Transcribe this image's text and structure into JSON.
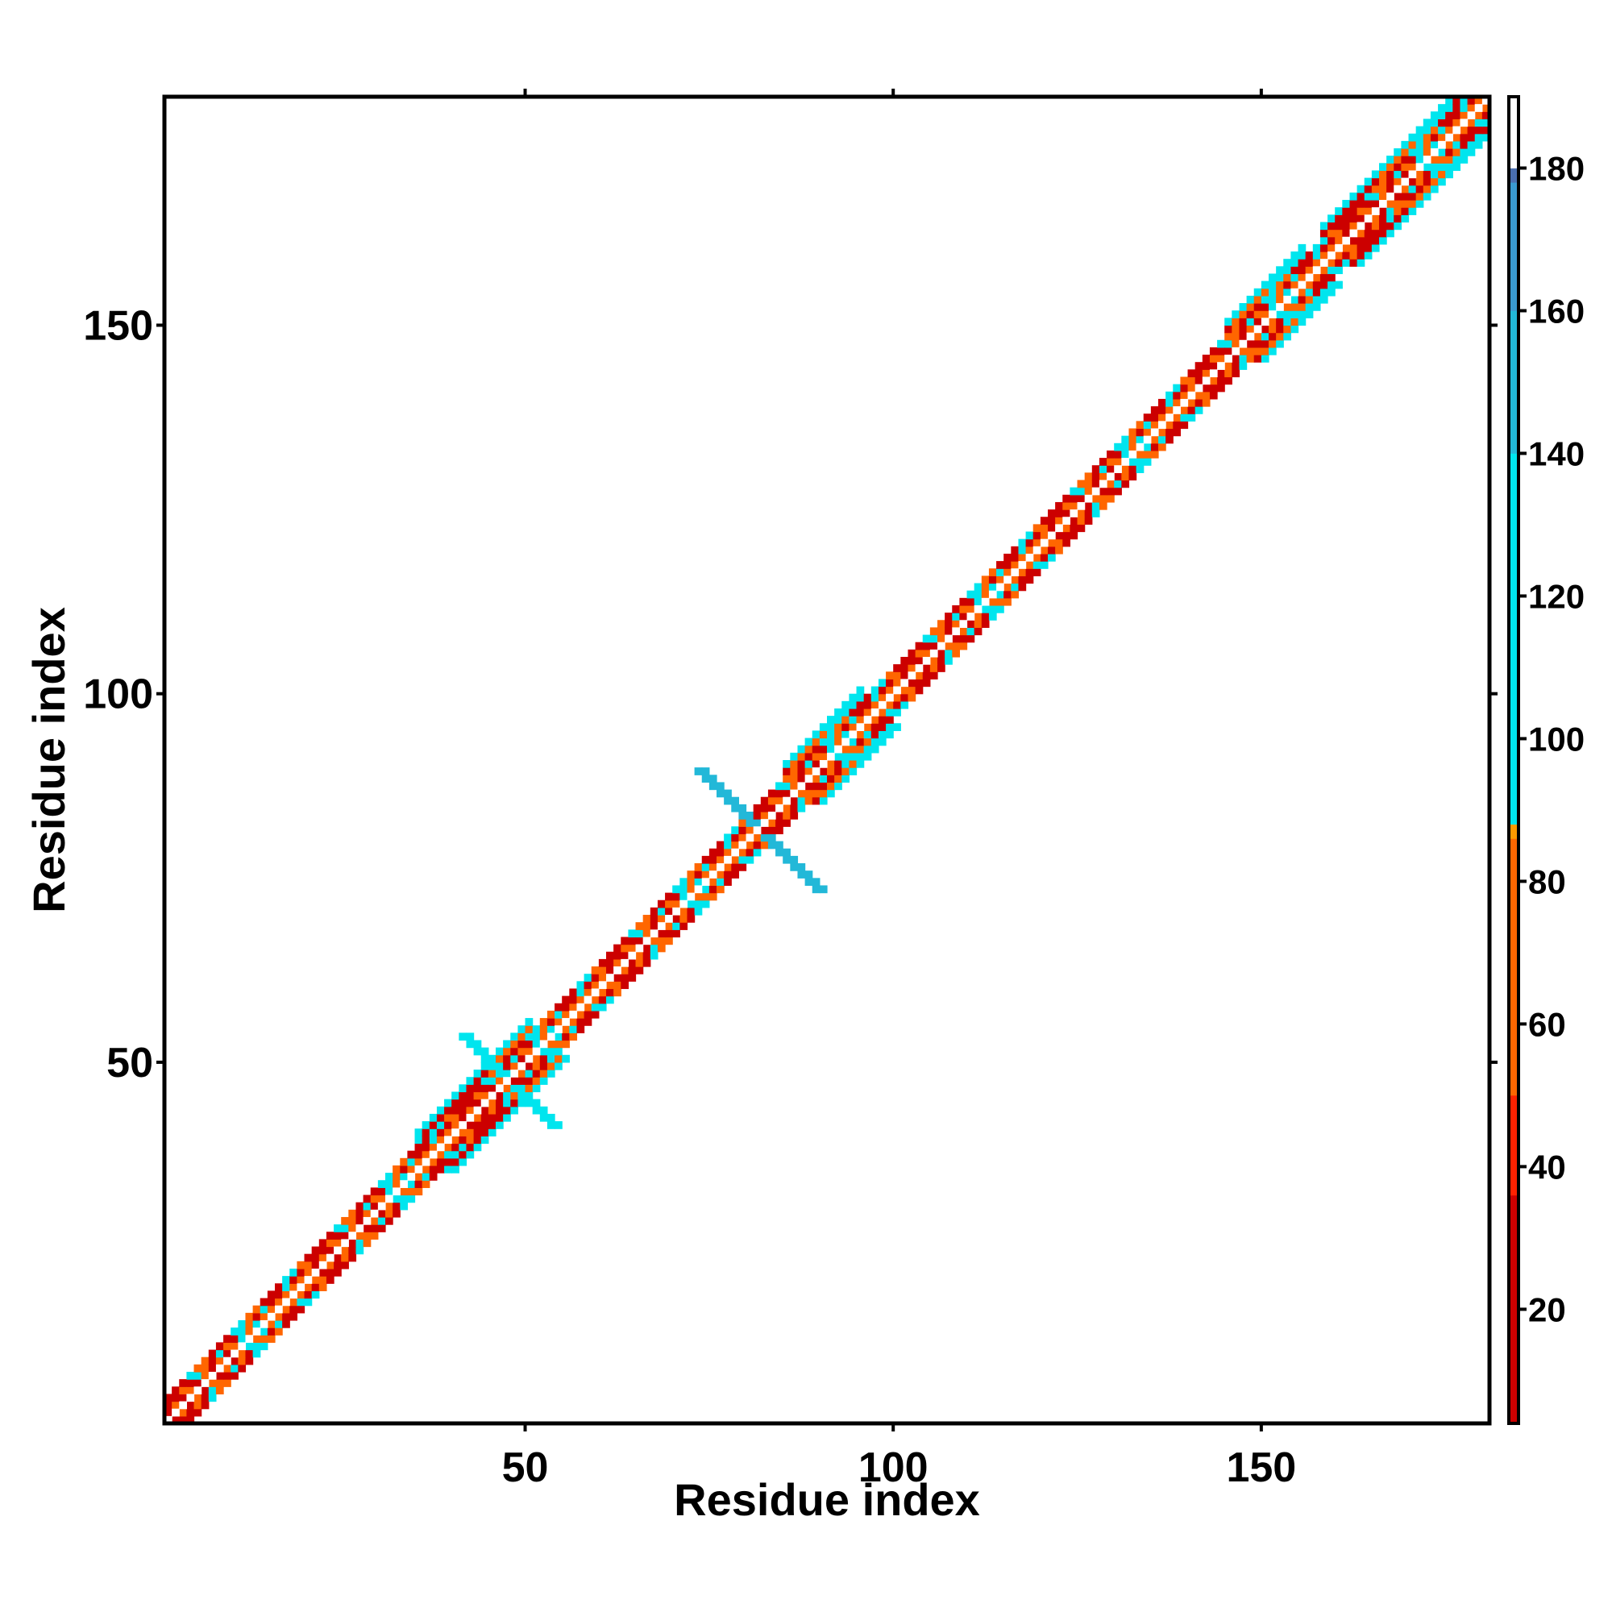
{
  "chart_data": {
    "type": "heatmap",
    "title": "",
    "xlabel": "Residue index",
    "ylabel": "Residue index",
    "n_residues": 180,
    "xlim": [
      1,
      181
    ],
    "ylim": [
      1,
      181
    ],
    "x_ticks": [
      50,
      100,
      150
    ],
    "y_ticks": [
      50,
      100,
      150
    ],
    "grid": false,
    "colorbar": {
      "range": [
        4,
        190
      ],
      "ticks": [
        20,
        40,
        60,
        80,
        100,
        120,
        140,
        160,
        180
      ],
      "stops": [
        {
          "value": 4,
          "color": "#cc0000"
        },
        {
          "value": 36,
          "color": "#ff2200"
        },
        {
          "value": 50,
          "color": "#ff6600"
        },
        {
          "value": 86,
          "color": "#ff9900"
        },
        {
          "value": 88,
          "color": "#00e5ee"
        },
        {
          "value": 140,
          "color": "#22b8d8"
        },
        {
          "value": 160,
          "color": "#3a9ad0"
        },
        {
          "value": 178,
          "color": "#4a6fb0"
        },
        {
          "value": 180,
          "color": "#ffffff"
        },
        {
          "value": 190,
          "color": "#ffffff"
        }
      ]
    },
    "band_color_values": [
      5,
      30,
      65,
      100
    ],
    "wide_regions": [
      {
        "from": 35,
        "to": 50
      },
      {
        "from": 85,
        "to": 95
      },
      {
        "from": 145,
        "to": 155
      },
      {
        "from": 158,
        "to": 181
      }
    ],
    "cross_features": [
      {
        "center": 47,
        "half_length": 6,
        "value": 130
      },
      {
        "center": 81,
        "half_length": 8,
        "value": 150
      }
    ],
    "colors": {
      "axis": "#000000",
      "background": "#ffffff",
      "diagonal": "#ffffff"
    }
  }
}
